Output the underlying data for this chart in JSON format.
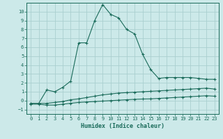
{
  "xlabel": "Humidex (Indice chaleur)",
  "background_color": "#cce9e9",
  "grid_color": "#aacfcf",
  "line_color": "#1a6b5a",
  "xlim": [
    -0.5,
    23.5
  ],
  "ylim": [
    -1.5,
    11.0
  ],
  "xticks": [
    0,
    1,
    2,
    3,
    4,
    5,
    6,
    7,
    8,
    9,
    10,
    11,
    12,
    13,
    14,
    15,
    16,
    17,
    18,
    19,
    20,
    21,
    22,
    23
  ],
  "yticks": [
    -1,
    0,
    1,
    2,
    3,
    4,
    5,
    6,
    7,
    8,
    9,
    10
  ],
  "curve1_x": [
    0,
    1,
    2,
    3,
    4,
    5,
    6,
    7,
    8,
    9,
    10,
    11,
    12,
    13,
    14,
    15,
    16,
    17,
    18,
    19,
    20,
    21,
    22,
    23
  ],
  "curve1_y": [
    -0.3,
    -0.3,
    1.2,
    1.0,
    1.5,
    2.2,
    6.5,
    6.5,
    9.0,
    10.8,
    9.7,
    9.3,
    8.0,
    7.5,
    5.2,
    3.5,
    2.5,
    2.6,
    2.6,
    2.6,
    2.6,
    2.5,
    2.4,
    2.4
  ],
  "curve2_x": [
    0,
    1,
    2,
    3,
    4,
    5,
    6,
    7,
    8,
    9,
    10,
    11,
    12,
    13,
    14,
    15,
    16,
    17,
    18,
    19,
    20,
    21,
    22,
    23
  ],
  "curve2_y": [
    -0.3,
    -0.3,
    -0.3,
    -0.2,
    -0.1,
    0.1,
    0.2,
    0.35,
    0.5,
    0.65,
    0.75,
    0.85,
    0.9,
    0.95,
    1.0,
    1.05,
    1.1,
    1.15,
    1.2,
    1.25,
    1.3,
    1.35,
    1.4,
    1.3
  ],
  "curve3_x": [
    0,
    1,
    2,
    3,
    4,
    5,
    6,
    7,
    8,
    9,
    10,
    11,
    12,
    13,
    14,
    15,
    16,
    17,
    18,
    19,
    20,
    21,
    22,
    23
  ],
  "curve3_y": [
    -0.4,
    -0.4,
    -0.5,
    -0.5,
    -0.4,
    -0.3,
    -0.2,
    -0.15,
    -0.1,
    -0.05,
    0.0,
    0.05,
    0.1,
    0.15,
    0.18,
    0.2,
    0.25,
    0.3,
    0.35,
    0.4,
    0.45,
    0.5,
    0.55,
    0.5
  ]
}
